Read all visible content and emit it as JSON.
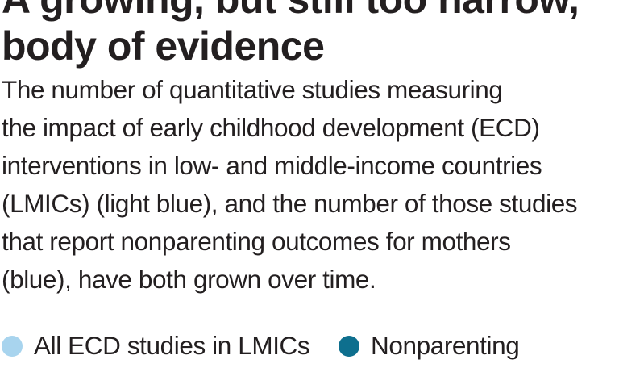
{
  "chart_data": {
    "type": "bar",
    "title": "A growing, but still too narrow, body of evidence",
    "title_lines": [
      "A growing, but still too narrow,",
      "body of evidence"
    ],
    "subtitle_lines": [
      "The number of quantitative studies measuring",
      "the impact of early childhood development (ECD)",
      "interventions in low- and middle-income countries",
      "(LMICs) (light blue), and the number of those studies",
      "that report nonparenting outcomes for mothers",
      "(blue), have both grown over time."
    ],
    "legend": [
      {
        "label": "All ECD studies in LMICs",
        "color": "#a8d4ee"
      },
      {
        "label": "Nonparenting",
        "color": "#0e6f8e"
      }
    ],
    "legend_placement": "bottom",
    "series": [
      {
        "name": "All ECD studies in LMICs",
        "values": []
      },
      {
        "name": "Nonparenting",
        "values": []
      }
    ],
    "categories": []
  }
}
